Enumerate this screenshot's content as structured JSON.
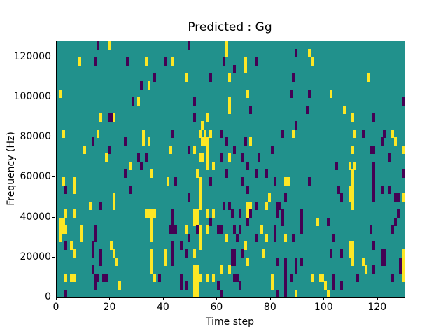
{
  "figure": {
    "title": "Predicted : Gg",
    "xlabel": "Time step",
    "ylabel": "Frequency (Hz)"
  },
  "chart_data": {
    "type": "heatmap",
    "title": "Predicted : Gg",
    "xlabel": "Time step",
    "ylabel": "Frequency (Hz)",
    "x_range": [
      0,
      130
    ],
    "y_range": [
      0,
      128000
    ],
    "grid": {
      "cols": 130,
      "rows": 32,
      "time_per_col": 1,
      "hz_per_row": 4000
    },
    "xticks": [
      0,
      20,
      40,
      60,
      80,
      100,
      120
    ],
    "yticks": [
      0,
      20000,
      40000,
      60000,
      80000,
      100000,
      120000
    ],
    "grid_lines": false,
    "legend": "none",
    "colormap": {
      "name": "viridis-3-level",
      "background_mid": "#21918c",
      "low_p": "#440154",
      "high_y": "#fde725"
    },
    "cells_format": "[time_col (0-129), freq_row (0=bottom,31=top), 'y'=yellow high | 'p'=purple low]; all other cells are mid teal",
    "cells": [
      [
        15,
        31,
        "p"
      ],
      [
        19,
        31,
        "y"
      ],
      [
        49,
        31,
        "p"
      ],
      [
        63,
        31,
        "y"
      ],
      [
        63,
        30,
        "y"
      ],
      [
        89,
        30,
        "p"
      ],
      [
        94,
        30,
        "y"
      ],
      [
        8,
        29,
        "y"
      ],
      [
        14,
        29,
        "p"
      ],
      [
        26,
        29,
        "p"
      ],
      [
        33,
        29,
        "y"
      ],
      [
        40,
        29,
        "p"
      ],
      [
        43,
        29,
        "y"
      ],
      [
        62,
        29,
        "p"
      ],
      [
        70,
        29,
        "y"
      ],
      [
        74,
        29,
        "p"
      ],
      [
        95,
        29,
        "y"
      ],
      [
        66,
        28,
        "p"
      ],
      [
        70,
        28,
        "y"
      ],
      [
        36,
        27,
        "p"
      ],
      [
        48,
        27,
        "y"
      ],
      [
        57,
        27,
        "p"
      ],
      [
        64,
        27,
        "y"
      ],
      [
        88,
        27,
        "p"
      ],
      [
        116,
        27,
        "y"
      ],
      [
        31,
        26,
        "p"
      ],
      [
        34,
        26,
        "y"
      ],
      [
        1,
        25,
        "y"
      ],
      [
        71,
        25,
        "y"
      ],
      [
        87,
        25,
        "p"
      ],
      [
        94,
        25,
        "p"
      ],
      [
        102,
        25,
        "y"
      ],
      [
        28,
        24,
        "p"
      ],
      [
        30,
        24,
        "y"
      ],
      [
        51,
        24,
        "p"
      ],
      [
        64,
        24,
        "y"
      ],
      [
        129,
        24,
        "p"
      ],
      [
        64,
        23,
        "y"
      ],
      [
        72,
        23,
        "p"
      ],
      [
        93,
        23,
        "p"
      ],
      [
        107,
        23,
        "y"
      ],
      [
        16,
        22,
        "y"
      ],
      [
        19,
        22,
        "p"
      ],
      [
        20,
        22,
        "p"
      ],
      [
        21,
        22,
        "y"
      ],
      [
        51,
        22,
        "p"
      ],
      [
        56,
        22,
        "y"
      ],
      [
        110,
        22,
        "y"
      ],
      [
        118,
        22,
        "p"
      ],
      [
        54,
        21,
        "y"
      ],
      [
        89,
        21,
        "p"
      ],
      [
        2,
        20,
        "y"
      ],
      [
        15,
        20,
        "y"
      ],
      [
        32,
        20,
        "y"
      ],
      [
        43,
        20,
        "p"
      ],
      [
        53,
        20,
        "y"
      ],
      [
        55,
        20,
        "y"
      ],
      [
        57,
        20,
        "y"
      ],
      [
        61,
        20,
        "p"
      ],
      [
        84,
        20,
        "p"
      ],
      [
        88,
        20,
        "y"
      ],
      [
        111,
        20,
        "y"
      ],
      [
        114,
        20,
        "p"
      ],
      [
        122,
        20,
        "p"
      ],
      [
        125,
        20,
        "y"
      ],
      [
        13,
        19,
        "p"
      ],
      [
        25,
        19,
        "p"
      ],
      [
        32,
        19,
        "y"
      ],
      [
        34,
        19,
        "y"
      ],
      [
        54,
        19,
        "y"
      ],
      [
        55,
        19,
        "y"
      ],
      [
        56,
        19,
        "y"
      ],
      [
        63,
        19,
        "p"
      ],
      [
        70,
        19,
        "p"
      ],
      [
        72,
        19,
        "y"
      ],
      [
        121,
        19,
        "p"
      ],
      [
        126,
        19,
        "y"
      ],
      [
        10,
        18,
        "y"
      ],
      [
        19,
        18,
        "p"
      ],
      [
        42,
        18,
        "y"
      ],
      [
        49,
        18,
        "p"
      ],
      [
        51,
        18,
        "y"
      ],
      [
        56,
        18,
        "y"
      ],
      [
        66,
        18,
        "p"
      ],
      [
        80,
        18,
        "p"
      ],
      [
        110,
        18,
        "y"
      ],
      [
        117,
        18,
        "p"
      ],
      [
        118,
        18,
        "p"
      ],
      [
        129,
        18,
        "y"
      ],
      [
        18,
        17,
        "y"
      ],
      [
        30,
        17,
        "p"
      ],
      [
        33,
        17,
        "p"
      ],
      [
        53,
        17,
        "y"
      ],
      [
        54,
        17,
        "y"
      ],
      [
        56,
        17,
        "y"
      ],
      [
        61,
        17,
        "p"
      ],
      [
        64,
        17,
        "y"
      ],
      [
        69,
        17,
        "p"
      ],
      [
        75,
        17,
        "p"
      ],
      [
        124,
        17,
        "p"
      ],
      [
        27,
        16,
        "y"
      ],
      [
        31,
        16,
        "p"
      ],
      [
        56,
        16,
        "y"
      ],
      [
        58,
        16,
        "y"
      ],
      [
        71,
        16,
        "p"
      ],
      [
        104,
        16,
        "p"
      ],
      [
        109,
        16,
        "y"
      ],
      [
        111,
        16,
        "y"
      ],
      [
        118,
        16,
        "p"
      ],
      [
        25,
        15,
        "p"
      ],
      [
        35,
        15,
        "y"
      ],
      [
        52,
        15,
        "y"
      ],
      [
        63,
        15,
        "p"
      ],
      [
        74,
        15,
        "p"
      ],
      [
        78,
        15,
        "p"
      ],
      [
        110,
        15,
        "y"
      ],
      [
        118,
        15,
        "p"
      ],
      [
        129,
        15,
        "p"
      ],
      [
        2,
        14,
        "y"
      ],
      [
        6,
        14,
        "y"
      ],
      [
        41,
        14,
        "y"
      ],
      [
        44,
        14,
        "p"
      ],
      [
        53,
        14,
        "y"
      ],
      [
        57,
        14,
        "p"
      ],
      [
        69,
        14,
        "p"
      ],
      [
        81,
        14,
        "p"
      ],
      [
        85,
        14,
        "y"
      ],
      [
        86,
        14,
        "y"
      ],
      [
        94,
        14,
        "p"
      ],
      [
        110,
        14,
        "y"
      ],
      [
        118,
        14,
        "p"
      ],
      [
        3,
        13,
        "p"
      ],
      [
        6,
        13,
        "y"
      ],
      [
        27,
        13,
        "p"
      ],
      [
        53,
        13,
        "y"
      ],
      [
        71,
        13,
        "p"
      ],
      [
        105,
        13,
        "p"
      ],
      [
        109,
        13,
        "y"
      ],
      [
        110,
        13,
        "y"
      ],
      [
        118,
        13,
        "p"
      ],
      [
        121,
        13,
        "p"
      ],
      [
        124,
        13,
        "p"
      ],
      [
        21,
        12,
        "y"
      ],
      [
        49,
        12,
        "p"
      ],
      [
        53,
        12,
        "y"
      ],
      [
        79,
        12,
        "y"
      ],
      [
        85,
        12,
        "p"
      ],
      [
        106,
        12,
        "p"
      ],
      [
        109,
        12,
        "y"
      ],
      [
        110,
        12,
        "y"
      ],
      [
        118,
        12,
        "p"
      ],
      [
        126,
        12,
        "p"
      ],
      [
        127,
        12,
        "p"
      ],
      [
        129,
        12,
        "y"
      ],
      [
        12,
        11,
        "y"
      ],
      [
        16,
        11,
        "p"
      ],
      [
        21,
        11,
        "y"
      ],
      [
        53,
        11,
        "y"
      ],
      [
        62,
        11,
        "p"
      ],
      [
        64,
        11,
        "p"
      ],
      [
        71,
        11,
        "y"
      ],
      [
        72,
        11,
        "y"
      ],
      [
        74,
        11,
        "p"
      ],
      [
        78,
        11,
        "y"
      ],
      [
        82,
        11,
        "p"
      ],
      [
        83,
        11,
        "p"
      ],
      [
        110,
        11,
        "y"
      ],
      [
        3,
        10,
        "y"
      ],
      [
        6,
        10,
        "y"
      ],
      [
        33,
        10,
        "y"
      ],
      [
        34,
        10,
        "y"
      ],
      [
        35,
        10,
        "y"
      ],
      [
        36,
        10,
        "y"
      ],
      [
        43,
        10,
        "p"
      ],
      [
        51,
        10,
        "y"
      ],
      [
        52,
        10,
        "y"
      ],
      [
        56,
        10,
        "y"
      ],
      [
        58,
        10,
        "y"
      ],
      [
        65,
        10,
        "p"
      ],
      [
        68,
        10,
        "p"
      ],
      [
        71,
        10,
        "y"
      ],
      [
        72,
        10,
        "p"
      ],
      [
        82,
        10,
        "p"
      ],
      [
        84,
        10,
        "p"
      ],
      [
        91,
        10,
        "p"
      ],
      [
        127,
        10,
        "p"
      ],
      [
        1,
        9,
        "y"
      ],
      [
        2,
        9,
        "y"
      ],
      [
        35,
        9,
        "y"
      ],
      [
        43,
        9,
        "p"
      ],
      [
        51,
        9,
        "y"
      ],
      [
        52,
        9,
        "y"
      ],
      [
        57,
        9,
        "p"
      ],
      [
        71,
        9,
        "p"
      ],
      [
        84,
        9,
        "p"
      ],
      [
        91,
        9,
        "p"
      ],
      [
        97,
        9,
        "y"
      ],
      [
        101,
        9,
        "p"
      ],
      [
        126,
        9,
        "p"
      ],
      [
        1,
        8,
        "y"
      ],
      [
        2,
        8,
        "y"
      ],
      [
        3,
        8,
        "y"
      ],
      [
        9,
        8,
        "y"
      ],
      [
        14,
        8,
        "p"
      ],
      [
        35,
        8,
        "y"
      ],
      [
        42,
        8,
        "p"
      ],
      [
        43,
        8,
        "p"
      ],
      [
        44,
        8,
        "p"
      ],
      [
        48,
        8,
        "y"
      ],
      [
        52,
        8,
        "p"
      ],
      [
        53,
        8,
        "y"
      ],
      [
        56,
        8,
        "y"
      ],
      [
        60,
        8,
        "p"
      ],
      [
        61,
        8,
        "p"
      ],
      [
        66,
        8,
        "p"
      ],
      [
        68,
        8,
        "p"
      ],
      [
        76,
        8,
        "y"
      ],
      [
        81,
        8,
        "p"
      ],
      [
        91,
        8,
        "p"
      ],
      [
        117,
        8,
        "p"
      ],
      [
        125,
        8,
        "p"
      ],
      [
        1,
        7,
        "y"
      ],
      [
        9,
        7,
        "y"
      ],
      [
        14,
        7,
        "p"
      ],
      [
        35,
        7,
        "y"
      ],
      [
        49,
        7,
        "p"
      ],
      [
        53,
        7,
        "y"
      ],
      [
        63,
        7,
        "y"
      ],
      [
        67,
        7,
        "p"
      ],
      [
        74,
        7,
        "p"
      ],
      [
        78,
        7,
        "y"
      ],
      [
        81,
        7,
        "p"
      ],
      [
        85,
        7,
        "y"
      ],
      [
        88,
        7,
        "p"
      ],
      [
        103,
        7,
        "p"
      ],
      [
        3,
        6,
        "p"
      ],
      [
        5,
        6,
        "y"
      ],
      [
        13,
        6,
        "p"
      ],
      [
        20,
        6,
        "y"
      ],
      [
        43,
        6,
        "p"
      ],
      [
        46,
        6,
        "p"
      ],
      [
        53,
        6,
        "y"
      ],
      [
        70,
        6,
        "y"
      ],
      [
        109,
        6,
        "y"
      ],
      [
        110,
        6,
        "y"
      ],
      [
        118,
        6,
        "p"
      ],
      [
        6,
        5,
        "y"
      ],
      [
        13,
        5,
        "p"
      ],
      [
        16,
        5,
        "p"
      ],
      [
        21,
        5,
        "y"
      ],
      [
        35,
        5,
        "y"
      ],
      [
        40,
        5,
        "y"
      ],
      [
        43,
        5,
        "p"
      ],
      [
        48,
        5,
        "p"
      ],
      [
        51,
        5,
        "y"
      ],
      [
        65,
        5,
        "p"
      ],
      [
        66,
        5,
        "p"
      ],
      [
        69,
        5,
        "p"
      ],
      [
        77,
        5,
        "y"
      ],
      [
        102,
        5,
        "p"
      ],
      [
        106,
        5,
        "p"
      ],
      [
        109,
        5,
        "y"
      ],
      [
        110,
        5,
        "y"
      ],
      [
        121,
        5,
        "p"
      ],
      [
        122,
        5,
        "p"
      ],
      [
        129,
        5,
        "y"
      ],
      [
        16,
        4,
        "p"
      ],
      [
        22,
        4,
        "y"
      ],
      [
        35,
        4,
        "y"
      ],
      [
        40,
        4,
        "y"
      ],
      [
        43,
        4,
        "p"
      ],
      [
        65,
        4,
        "p"
      ],
      [
        66,
        4,
        "p"
      ],
      [
        71,
        4,
        "y"
      ],
      [
        82,
        4,
        "p"
      ],
      [
        85,
        4,
        "p"
      ],
      [
        89,
        4,
        "p"
      ],
      [
        91,
        4,
        "p"
      ],
      [
        110,
        4,
        "y"
      ],
      [
        114,
        4,
        "y"
      ],
      [
        121,
        4,
        "p"
      ],
      [
        122,
        4,
        "p"
      ],
      [
        128,
        4,
        "p"
      ],
      [
        129,
        4,
        "y"
      ],
      [
        13,
        3,
        "p"
      ],
      [
        35,
        3,
        "y"
      ],
      [
        51,
        3,
        "y"
      ],
      [
        52,
        3,
        "y"
      ],
      [
        61,
        3,
        "y"
      ],
      [
        64,
        3,
        "y"
      ],
      [
        85,
        3,
        "p"
      ],
      [
        89,
        3,
        "p"
      ],
      [
        115,
        3,
        "y"
      ],
      [
        118,
        3,
        "p"
      ],
      [
        128,
        3,
        "p"
      ],
      [
        129,
        3,
        "y"
      ],
      [
        3,
        2,
        "y"
      ],
      [
        5,
        2,
        "y"
      ],
      [
        6,
        2,
        "y"
      ],
      [
        14,
        2,
        "p"
      ],
      [
        15,
        2,
        "p"
      ],
      [
        17,
        2,
        "p"
      ],
      [
        18,
        2,
        "p"
      ],
      [
        36,
        2,
        "y"
      ],
      [
        38,
        2,
        "p"
      ],
      [
        46,
        2,
        "p"
      ],
      [
        51,
        2,
        "y"
      ],
      [
        52,
        2,
        "y"
      ],
      [
        53,
        2,
        "y"
      ],
      [
        56,
        2,
        "y"
      ],
      [
        58,
        2,
        "y"
      ],
      [
        66,
        2,
        "p"
      ],
      [
        67,
        2,
        "p"
      ],
      [
        80,
        2,
        "y"
      ],
      [
        85,
        2,
        "p"
      ],
      [
        87,
        2,
        "p"
      ],
      [
        95,
        2,
        "y"
      ],
      [
        98,
        2,
        "y"
      ],
      [
        99,
        2,
        "y"
      ],
      [
        103,
        2,
        "p"
      ],
      [
        112,
        2,
        "p"
      ],
      [
        125,
        2,
        "p"
      ],
      [
        129,
        2,
        "y"
      ],
      [
        14,
        1,
        "p"
      ],
      [
        23,
        1,
        "y"
      ],
      [
        46,
        1,
        "p"
      ],
      [
        48,
        1,
        "p"
      ],
      [
        51,
        1,
        "y"
      ],
      [
        52,
        1,
        "y"
      ],
      [
        60,
        1,
        "p"
      ],
      [
        68,
        1,
        "p"
      ],
      [
        80,
        1,
        "y"
      ],
      [
        85,
        1,
        "p"
      ],
      [
        100,
        1,
        "y"
      ],
      [
        103,
        1,
        "p"
      ],
      [
        106,
        1,
        "p"
      ],
      [
        3,
        0,
        "p"
      ],
      [
        51,
        0,
        "y"
      ],
      [
        52,
        0,
        "y"
      ],
      [
        61,
        0,
        "p"
      ],
      [
        82,
        0,
        "p"
      ],
      [
        85,
        0,
        "p"
      ],
      [
        89,
        0,
        "y"
      ],
      [
        101,
        0,
        "y"
      ]
    ]
  }
}
